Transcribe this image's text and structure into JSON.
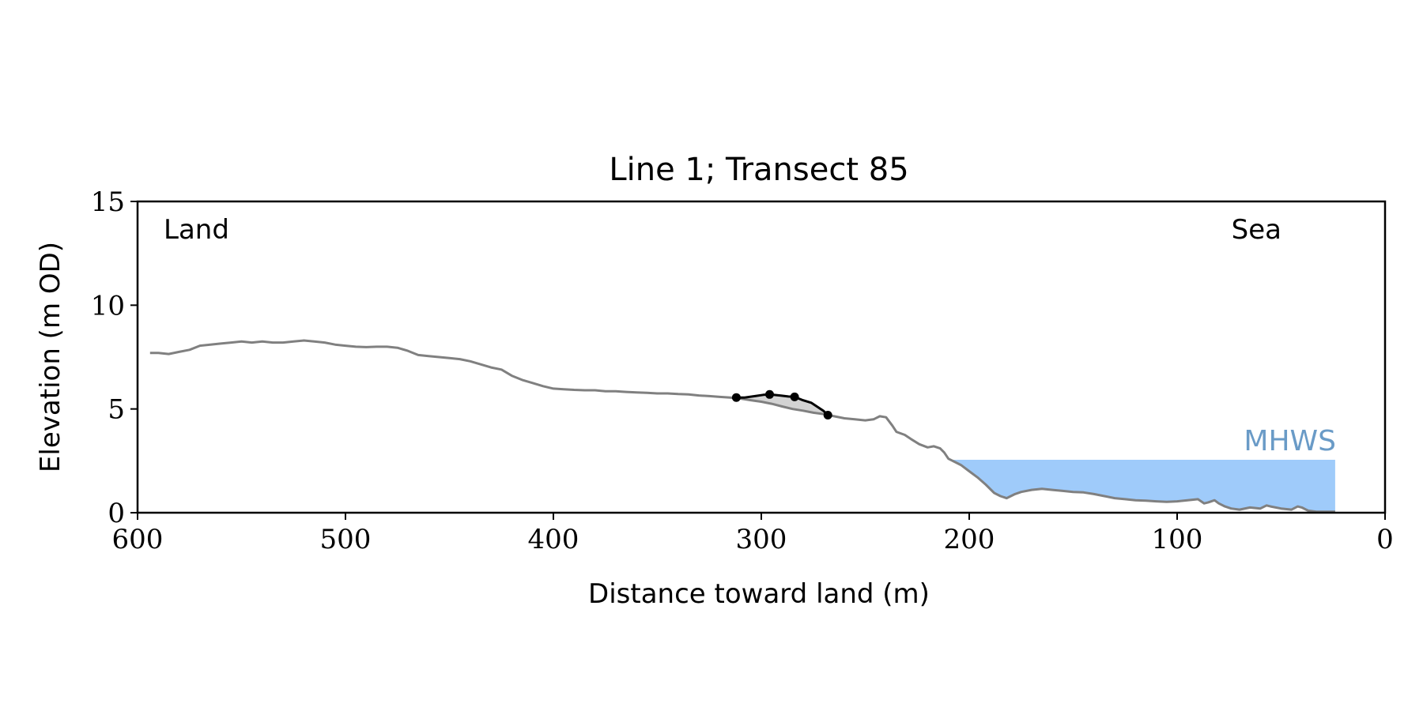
{
  "chart_data": {
    "type": "line",
    "title": "Line 1; Transect 85",
    "xlabel": "Distance toward land (m)",
    "ylabel": "Elevation (m OD)",
    "xlim": [
      600,
      0
    ],
    "ylim": [
      0,
      15
    ],
    "x_ticks": [
      600,
      500,
      400,
      300,
      200,
      100,
      0
    ],
    "y_ticks": [
      0,
      5,
      10,
      15
    ],
    "grid": false,
    "legend": "none",
    "annotations": {
      "left": "Land",
      "right": "Sea",
      "water_label": "MHWS"
    },
    "colors": {
      "profile": "#808080",
      "feature": "#000000",
      "feature_fill": "#d3d3d3",
      "water": "#9fcbfa",
      "water_label": "#6a9bc7"
    },
    "water_level": {
      "y": 2.55,
      "x_from": 208,
      "x_to": 24
    },
    "profile": [
      [
        594,
        7.7
      ],
      [
        590,
        7.7
      ],
      [
        585,
        7.65
      ],
      [
        580,
        7.75
      ],
      [
        575,
        7.85
      ],
      [
        570,
        8.05
      ],
      [
        565,
        8.1
      ],
      [
        560,
        8.15
      ],
      [
        555,
        8.2
      ],
      [
        550,
        8.25
      ],
      [
        545,
        8.2
      ],
      [
        540,
        8.25
      ],
      [
        535,
        8.2
      ],
      [
        530,
        8.2
      ],
      [
        525,
        8.25
      ],
      [
        520,
        8.3
      ],
      [
        515,
        8.25
      ],
      [
        510,
        8.2
      ],
      [
        505,
        8.1
      ],
      [
        500,
        8.05
      ],
      [
        495,
        8.0
      ],
      [
        490,
        7.98
      ],
      [
        485,
        8.0
      ],
      [
        480,
        8.0
      ],
      [
        475,
        7.95
      ],
      [
        470,
        7.8
      ],
      [
        465,
        7.6
      ],
      [
        460,
        7.55
      ],
      [
        455,
        7.5
      ],
      [
        450,
        7.45
      ],
      [
        445,
        7.4
      ],
      [
        440,
        7.3
      ],
      [
        435,
        7.15
      ],
      [
        430,
        7.0
      ],
      [
        425,
        6.9
      ],
      [
        420,
        6.6
      ],
      [
        415,
        6.4
      ],
      [
        410,
        6.25
      ],
      [
        405,
        6.1
      ],
      [
        400,
        5.98
      ],
      [
        395,
        5.95
      ],
      [
        390,
        5.92
      ],
      [
        385,
        5.9
      ],
      [
        380,
        5.9
      ],
      [
        375,
        5.85
      ],
      [
        370,
        5.85
      ],
      [
        365,
        5.82
      ],
      [
        360,
        5.8
      ],
      [
        355,
        5.78
      ],
      [
        350,
        5.75
      ],
      [
        345,
        5.75
      ],
      [
        340,
        5.72
      ],
      [
        335,
        5.7
      ],
      [
        330,
        5.65
      ],
      [
        325,
        5.62
      ],
      [
        320,
        5.58
      ],
      [
        315,
        5.55
      ],
      [
        310,
        5.5
      ],
      [
        305,
        5.42
      ],
      [
        300,
        5.35
      ],
      [
        295,
        5.25
      ],
      [
        290,
        5.12
      ],
      [
        285,
        5.0
      ],
      [
        280,
        4.92
      ],
      [
        275,
        4.82
      ],
      [
        270,
        4.75
      ],
      [
        265,
        4.65
      ],
      [
        260,
        4.55
      ],
      [
        255,
        4.5
      ],
      [
        250,
        4.45
      ],
      [
        246,
        4.5
      ],
      [
        243,
        4.65
      ],
      [
        240,
        4.6
      ],
      [
        237,
        4.2
      ],
      [
        235,
        3.9
      ],
      [
        231,
        3.75
      ],
      [
        228,
        3.55
      ],
      [
        224,
        3.3
      ],
      [
        220,
        3.15
      ],
      [
        217,
        3.2
      ],
      [
        214,
        3.1
      ],
      [
        212,
        2.9
      ],
      [
        210,
        2.6
      ],
      [
        207,
        2.45
      ],
      [
        204,
        2.3
      ],
      [
        200,
        2.0
      ],
      [
        196,
        1.7
      ],
      [
        192,
        1.35
      ],
      [
        188,
        0.95
      ],
      [
        185,
        0.8
      ],
      [
        182,
        0.7
      ],
      [
        178,
        0.9
      ],
      [
        175,
        1.0
      ],
      [
        170,
        1.1
      ],
      [
        165,
        1.15
      ],
      [
        160,
        1.1
      ],
      [
        155,
        1.05
      ],
      [
        150,
        1.0
      ],
      [
        145,
        0.98
      ],
      [
        140,
        0.9
      ],
      [
        135,
        0.8
      ],
      [
        130,
        0.7
      ],
      [
        125,
        0.65
      ],
      [
        120,
        0.6
      ],
      [
        115,
        0.58
      ],
      [
        110,
        0.55
      ],
      [
        105,
        0.52
      ],
      [
        100,
        0.55
      ],
      [
        95,
        0.6
      ],
      [
        90,
        0.65
      ],
      [
        87,
        0.45
      ],
      [
        85,
        0.5
      ],
      [
        82,
        0.6
      ],
      [
        80,
        0.45
      ],
      [
        77,
        0.3
      ],
      [
        74,
        0.2
      ],
      [
        70,
        0.15
      ],
      [
        65,
        0.25
      ],
      [
        60,
        0.2
      ],
      [
        57,
        0.35
      ],
      [
        55,
        0.3
      ],
      [
        50,
        0.2
      ],
      [
        45,
        0.15
      ],
      [
        42,
        0.3
      ],
      [
        40,
        0.25
      ],
      [
        37,
        0.1
      ],
      [
        33,
        0.05
      ],
      [
        28,
        0.05
      ],
      [
        24,
        0.05
      ]
    ],
    "feature": [
      [
        312,
        5.55
      ],
      [
        308,
        5.55
      ],
      [
        303,
        5.62
      ],
      [
        299,
        5.68
      ],
      [
        296,
        5.7
      ],
      [
        291,
        5.65
      ],
      [
        287,
        5.6
      ],
      [
        284,
        5.58
      ],
      [
        280,
        5.42
      ],
      [
        276,
        5.3
      ],
      [
        273,
        5.1
      ],
      [
        270,
        4.9
      ],
      [
        268,
        4.7
      ]
    ],
    "feature_points": [
      [
        312,
        5.55
      ],
      [
        296,
        5.7
      ],
      [
        284,
        5.58
      ],
      [
        268,
        4.7
      ]
    ]
  }
}
